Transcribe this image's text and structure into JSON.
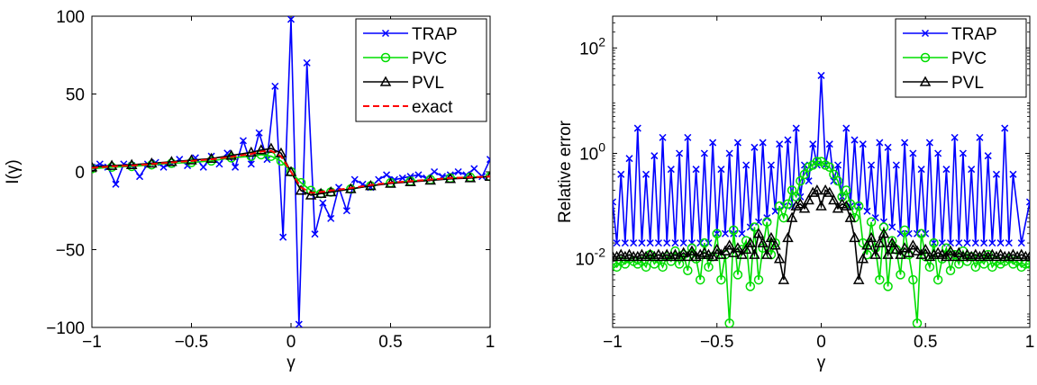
{
  "chart_data": [
    {
      "type": "line",
      "title": "",
      "xlabel": "γ",
      "ylabel": "I(γ)",
      "xlim": [
        -1,
        1
      ],
      "ylim": [
        -100,
        100
      ],
      "xscale": "linear",
      "yscale": "linear",
      "xticks": [
        -1,
        -0.5,
        0,
        0.5,
        1
      ],
      "xtick_labels": [
        "−1",
        "−0.5",
        "0",
        "0.5",
        "1"
      ],
      "yticks": [
        -100,
        -50,
        0,
        50,
        100
      ],
      "ytick_labels": [
        "−100",
        "−50",
        "0",
        "50",
        "100"
      ],
      "grid": false,
      "legend_position": "top-right",
      "legend": [
        "TRAP",
        "PVC",
        "PVL",
        "exact"
      ],
      "series": [
        {
          "name": "TRAP",
          "color": "#0000ff",
          "marker": "x",
          "linestyle": "solid",
          "x": [
            -1,
            -0.96,
            -0.92,
            -0.88,
            -0.84,
            -0.8,
            -0.76,
            -0.72,
            -0.68,
            -0.64,
            -0.6,
            -0.56,
            -0.52,
            -0.48,
            -0.44,
            -0.4,
            -0.36,
            -0.32,
            -0.28,
            -0.24,
            -0.2,
            -0.16,
            -0.12,
            -0.08,
            -0.04,
            0,
            0.04,
            0.08,
            0.12,
            0.16,
            0.2,
            0.24,
            0.28,
            0.32,
            0.36,
            0.4,
            0.44,
            0.48,
            0.52,
            0.56,
            0.6,
            0.64,
            0.68,
            0.72,
            0.76,
            0.8,
            0.84,
            0.88,
            0.92,
            0.96,
            1
          ],
          "y": [
            3,
            5,
            3,
            -8,
            5,
            4,
            -3,
            5,
            6,
            3,
            5,
            8,
            4,
            9,
            3,
            10,
            5,
            12,
            3,
            20,
            5,
            25,
            8,
            55,
            -42,
            98,
            -98,
            70,
            -40,
            -20,
            -30,
            -10,
            -25,
            -5,
            -8,
            -10,
            -5,
            -2,
            -5,
            -4,
            -3,
            -2,
            -4,
            0,
            -3,
            -2,
            0,
            -2,
            2,
            -3,
            8
          ]
        },
        {
          "name": "PVC",
          "color": "#00dd00",
          "marker": "o",
          "linestyle": "solid",
          "x": [
            -1,
            -0.9,
            -0.8,
            -0.7,
            -0.6,
            -0.5,
            -0.4,
            -0.3,
            -0.2,
            -0.15,
            -0.1,
            -0.05,
            0,
            0.05,
            0.1,
            0.15,
            0.2,
            0.3,
            0.4,
            0.5,
            0.6,
            0.7,
            0.8,
            0.9,
            1
          ],
          "y": [
            2,
            3,
            3.5,
            4.5,
            5.5,
            6,
            7,
            9,
            10,
            11,
            10,
            7,
            0,
            -7,
            -12,
            -14,
            -13,
            -11,
            -9,
            -7,
            -6,
            -5,
            -4,
            -3.5,
            -3
          ]
        },
        {
          "name": "PVL",
          "color": "#000000",
          "marker": "^",
          "linestyle": "solid",
          "x": [
            -1,
            -0.9,
            -0.8,
            -0.7,
            -0.6,
            -0.5,
            -0.4,
            -0.3,
            -0.2,
            -0.15,
            -0.1,
            -0.05,
            0,
            0.05,
            0.1,
            0.15,
            0.2,
            0.3,
            0.4,
            0.5,
            0.6,
            0.7,
            0.8,
            0.9,
            1
          ],
          "y": [
            3,
            4,
            4.5,
            5.5,
            6.5,
            7.5,
            8.5,
            10.5,
            12.5,
            14,
            15,
            12,
            0,
            -12,
            -15,
            -14,
            -13,
            -11,
            -9,
            -7.5,
            -6.5,
            -5.5,
            -4.5,
            -4,
            -3
          ]
        },
        {
          "name": "exact",
          "color": "#ff0000",
          "marker": "none",
          "linestyle": "dashed",
          "x": [
            -1,
            -0.9,
            -0.8,
            -0.7,
            -0.6,
            -0.5,
            -0.4,
            -0.3,
            -0.2,
            -0.15,
            -0.1,
            -0.05,
            0,
            0.05,
            0.1,
            0.15,
            0.2,
            0.3,
            0.4,
            0.5,
            0.6,
            0.7,
            0.8,
            0.9,
            1
          ],
          "y": [
            2.5,
            3.5,
            4,
            5,
            6,
            7,
            8,
            9.5,
            11.5,
            13,
            13.5,
            10,
            0,
            -10,
            -13.5,
            -13,
            -12,
            -10.5,
            -8.5,
            -7,
            -6,
            -5,
            -4,
            -3.5,
            -3
          ]
        }
      ]
    },
    {
      "type": "line",
      "title": "",
      "xlabel": "γ",
      "ylabel": "Relative error",
      "xlim": [
        -1,
        1
      ],
      "ylim": [
        0.0005,
        400
      ],
      "xscale": "linear",
      "yscale": "log",
      "xticks": [
        -1,
        -0.5,
        0,
        0.5,
        1
      ],
      "xtick_labels": [
        "−1",
        "−0.5",
        "0",
        "0.5",
        "1"
      ],
      "yticks": [
        0.01,
        1,
        100
      ],
      "ytick_labels": [
        "10⁻²",
        "10⁰",
        "10²"
      ],
      "grid": false,
      "legend_position": "top-right",
      "legend": [
        "TRAP",
        "PVC",
        "PVL"
      ],
      "series": [
        {
          "name": "TRAP",
          "color": "#0000ff",
          "marker": "x",
          "linestyle": "solid",
          "x": [
            -1,
            -0.98,
            -0.96,
            -0.94,
            -0.92,
            -0.9,
            -0.88,
            -0.86,
            -0.84,
            -0.82,
            -0.8,
            -0.78,
            -0.76,
            -0.74,
            -0.72,
            -0.7,
            -0.68,
            -0.66,
            -0.64,
            -0.62,
            -0.6,
            -0.58,
            -0.56,
            -0.54,
            -0.52,
            -0.5,
            -0.48,
            -0.46,
            -0.44,
            -0.42,
            -0.4,
            -0.38,
            -0.36,
            -0.34,
            -0.32,
            -0.3,
            -0.28,
            -0.26,
            -0.24,
            -0.22,
            -0.2,
            -0.18,
            -0.16,
            -0.14,
            -0.12,
            -0.1,
            -0.08,
            -0.06,
            -0.04,
            -0.02,
            0,
            0.02,
            0.04,
            0.06,
            0.08,
            0.1,
            0.12,
            0.14,
            0.16,
            0.18,
            0.2,
            0.22,
            0.24,
            0.26,
            0.28,
            0.3,
            0.32,
            0.34,
            0.36,
            0.38,
            0.4,
            0.42,
            0.44,
            0.46,
            0.48,
            0.5,
            0.52,
            0.54,
            0.56,
            0.58,
            0.6,
            0.62,
            0.64,
            0.66,
            0.68,
            0.7,
            0.72,
            0.74,
            0.76,
            0.78,
            0.8,
            0.82,
            0.84,
            0.86,
            0.88,
            0.9,
            0.92,
            0.96,
            1
          ],
          "y": [
            0.12,
            0.02,
            0.4,
            0.02,
            0.8,
            0.02,
            3,
            0.02,
            0.4,
            0.02,
            0.9,
            0.02,
            2,
            0.02,
            0.5,
            0.02,
            1,
            0.02,
            2,
            0.02,
            0.5,
            0.02,
            1,
            0.02,
            1.6,
            0.03,
            0.5,
            0.03,
            1,
            0.03,
            1.6,
            0.03,
            0.6,
            0.04,
            1.3,
            0.05,
            1.6,
            0.06,
            0.6,
            0.08,
            1.5,
            0.1,
            1.8,
            0.1,
            3,
            0.15,
            0.6,
            0.3,
            1.5,
            0.6,
            30,
            0.6,
            1.5,
            0.3,
            0.6,
            0.15,
            3,
            0.1,
            1.8,
            0.1,
            1.5,
            0.08,
            0.6,
            0.06,
            1.6,
            0.05,
            1.3,
            0.04,
            0.6,
            0.03,
            1.6,
            0.03,
            1,
            0.03,
            0.5,
            0.03,
            1.6,
            0.02,
            1,
            0.02,
            0.5,
            0.02,
            2,
            0.02,
            1,
            0.02,
            0.5,
            0.02,
            2,
            0.02,
            0.9,
            0.02,
            0.4,
            0.02,
            3,
            0.02,
            0.4,
            0.02,
            0.12
          ]
        },
        {
          "name": "PVC",
          "color": "#00dd00",
          "marker": "o",
          "linestyle": "solid",
          "x": [
            -1,
            -0.98,
            -0.96,
            -0.94,
            -0.92,
            -0.9,
            -0.88,
            -0.86,
            -0.84,
            -0.82,
            -0.8,
            -0.78,
            -0.76,
            -0.74,
            -0.72,
            -0.7,
            -0.68,
            -0.66,
            -0.64,
            -0.62,
            -0.6,
            -0.58,
            -0.56,
            -0.54,
            -0.52,
            -0.5,
            -0.48,
            -0.46,
            -0.44,
            -0.42,
            -0.4,
            -0.38,
            -0.36,
            -0.34,
            -0.32,
            -0.3,
            -0.28,
            -0.26,
            -0.24,
            -0.22,
            -0.2,
            -0.18,
            -0.16,
            -0.14,
            -0.12,
            -0.1,
            -0.08,
            -0.06,
            -0.04,
            -0.02,
            0,
            0.02,
            0.04,
            0.06,
            0.08,
            0.1,
            0.12,
            0.14,
            0.16,
            0.18,
            0.2,
            0.22,
            0.24,
            0.26,
            0.28,
            0.3,
            0.32,
            0.34,
            0.36,
            0.38,
            0.4,
            0.42,
            0.44,
            0.46,
            0.48,
            0.5,
            0.52,
            0.54,
            0.56,
            0.58,
            0.6,
            0.62,
            0.64,
            0.66,
            0.68,
            0.7,
            0.72,
            0.74,
            0.76,
            0.78,
            0.8,
            0.82,
            0.84,
            0.86,
            0.88,
            0.9,
            0.92,
            0.94,
            0.96,
            0.98,
            1
          ],
          "y": [
            0.008,
            0.007,
            0.009,
            0.008,
            0.01,
            0.009,
            0.008,
            0.009,
            0.007,
            0.012,
            0.008,
            0.01,
            0.007,
            0.011,
            0.009,
            0.014,
            0.008,
            0.012,
            0.006,
            0.016,
            0.01,
            0.004,
            0.02,
            0.007,
            0.011,
            0.03,
            0.004,
            0.012,
            0.0006,
            0.035,
            0.005,
            0.015,
            0.022,
            0.003,
            0.04,
            0.004,
            0.016,
            0.05,
            0.012,
            0.02,
            0.1,
            0.06,
            0.11,
            0.2,
            0.15,
            0.3,
            0.4,
            0.55,
            0.6,
            0.7,
            0.7,
            0.6,
            0.55,
            0.4,
            0.3,
            0.15,
            0.2,
            0.11,
            0.06,
            0.1,
            0.02,
            0.012,
            0.05,
            0.016,
            0.004,
            0.04,
            0.003,
            0.022,
            0.015,
            0.005,
            0.035,
            0.012,
            0.004,
            0.0006,
            0.03,
            0.011,
            0.007,
            0.02,
            0.004,
            0.01,
            0.016,
            0.006,
            0.012,
            0.008,
            0.014,
            0.009,
            0.011,
            0.007,
            0.01,
            0.008,
            0.012,
            0.007,
            0.009,
            0.008,
            0.009,
            0.01,
            0.008,
            0.009,
            0.007,
            0.008,
            0.008
          ]
        },
        {
          "name": "PVL",
          "color": "#000000",
          "marker": "^",
          "linestyle": "solid",
          "x": [
            -1,
            -0.98,
            -0.96,
            -0.94,
            -0.92,
            -0.9,
            -0.88,
            -0.86,
            -0.84,
            -0.82,
            -0.8,
            -0.78,
            -0.76,
            -0.74,
            -0.72,
            -0.7,
            -0.68,
            -0.66,
            -0.64,
            -0.62,
            -0.6,
            -0.58,
            -0.56,
            -0.54,
            -0.52,
            -0.5,
            -0.48,
            -0.46,
            -0.44,
            -0.42,
            -0.4,
            -0.38,
            -0.36,
            -0.34,
            -0.32,
            -0.3,
            -0.28,
            -0.26,
            -0.24,
            -0.22,
            -0.2,
            -0.18,
            -0.16,
            -0.14,
            -0.12,
            -0.1,
            -0.08,
            -0.06,
            -0.04,
            -0.02,
            0,
            0.02,
            0.04,
            0.06,
            0.08,
            0.1,
            0.12,
            0.14,
            0.16,
            0.18,
            0.2,
            0.22,
            0.24,
            0.26,
            0.28,
            0.3,
            0.32,
            0.34,
            0.36,
            0.38,
            0.4,
            0.42,
            0.44,
            0.46,
            0.48,
            0.5,
            0.52,
            0.54,
            0.56,
            0.58,
            0.6,
            0.62,
            0.64,
            0.66,
            0.68,
            0.7,
            0.72,
            0.74,
            0.76,
            0.78,
            0.8,
            0.82,
            0.84,
            0.86,
            0.88,
            0.9,
            0.92,
            0.94,
            0.96,
            0.98,
            1
          ],
          "y": [
            0.011,
            0.011,
            0.012,
            0.011,
            0.012,
            0.011,
            0.011,
            0.012,
            0.011,
            0.012,
            0.011,
            0.012,
            0.011,
            0.012,
            0.011,
            0.012,
            0.011,
            0.013,
            0.011,
            0.014,
            0.011,
            0.012,
            0.013,
            0.012,
            0.011,
            0.015,
            0.012,
            0.014,
            0.018,
            0.013,
            0.016,
            0.012,
            0.015,
            0.02,
            0.012,
            0.03,
            0.02,
            0.012,
            0.025,
            0.018,
            0.01,
            0.004,
            0.025,
            0.06,
            0.1,
            0.11,
            0.09,
            0.13,
            0.18,
            0.2,
            0.1,
            0.2,
            0.18,
            0.13,
            0.09,
            0.11,
            0.1,
            0.06,
            0.025,
            0.004,
            0.01,
            0.018,
            0.025,
            0.012,
            0.02,
            0.03,
            0.012,
            0.02,
            0.015,
            0.012,
            0.016,
            0.013,
            0.018,
            0.014,
            0.012,
            0.015,
            0.011,
            0.012,
            0.013,
            0.012,
            0.011,
            0.014,
            0.011,
            0.013,
            0.011,
            0.012,
            0.011,
            0.012,
            0.011,
            0.012,
            0.011,
            0.012,
            0.011,
            0.012,
            0.011,
            0.011,
            0.012,
            0.011,
            0.012,
            0.011,
            0.011
          ]
        }
      ]
    }
  ]
}
